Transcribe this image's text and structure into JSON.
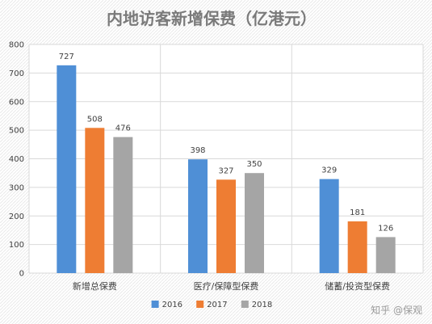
{
  "chart_data": {
    "type": "bar",
    "title": "内地访客新增保费（亿港元）",
    "categories": [
      "新增总保费",
      "医疗/保障型保费",
      "储蓄/投资型保费"
    ],
    "series": [
      {
        "name": "2016",
        "color": "#4f8fd6",
        "values": [
          727,
          398,
          329
        ]
      },
      {
        "name": "2017",
        "color": "#ee7d33",
        "values": [
          508,
          327,
          181
        ]
      },
      {
        "name": "2018",
        "color": "#a5a5a5",
        "values": [
          476,
          350,
          126
        ]
      }
    ],
    "ylim": [
      0,
      800
    ],
    "yticks": [
      0,
      100,
      200,
      300,
      400,
      500,
      600,
      700,
      800
    ],
    "grid": true,
    "legend_position": "bottom-center"
  },
  "watermark": "知乎 @保观"
}
